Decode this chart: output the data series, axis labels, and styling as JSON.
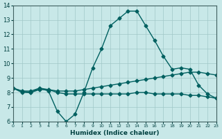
{
  "xlabel": "Humidex (Indice chaleur)",
  "ylabel": "",
  "xlim": [
    0,
    23
  ],
  "ylim": [
    6,
    14
  ],
  "xticks": [
    0,
    1,
    2,
    3,
    4,
    5,
    6,
    7,
    8,
    9,
    10,
    11,
    12,
    13,
    14,
    15,
    16,
    17,
    18,
    19,
    20,
    21,
    22,
    23
  ],
  "yticks": [
    6,
    7,
    8,
    9,
    10,
    11,
    12,
    13,
    14
  ],
  "background_color": "#c8e8e8",
  "grid_color": "#a0c8c8",
  "line_color": "#006060",
  "line1_x": [
    0,
    1,
    2,
    3,
    4,
    5,
    6,
    7,
    8,
    9,
    10,
    11,
    12,
    13,
    14,
    15,
    16,
    17,
    18,
    19,
    20,
    21,
    22,
    23
  ],
  "line1_y": [
    8.3,
    8.0,
    8.0,
    8.3,
    8.1,
    6.7,
    6.0,
    6.5,
    8.0,
    9.7,
    11.0,
    12.6,
    13.1,
    13.6,
    13.6,
    12.6,
    11.6,
    10.5,
    9.6,
    9.7,
    9.6,
    8.5,
    7.9,
    7.6
  ],
  "line2_x": [
    0,
    1,
    2,
    3,
    4,
    5,
    6,
    7,
    8,
    9,
    10,
    11,
    12,
    13,
    14,
    15,
    16,
    17,
    18,
    19,
    20,
    21,
    22,
    23
  ],
  "line2_y": [
    8.3,
    8.1,
    8.1,
    8.3,
    8.2,
    8.1,
    8.1,
    8.1,
    8.2,
    8.3,
    8.4,
    8.5,
    8.6,
    8.7,
    8.8,
    8.9,
    9.0,
    9.1,
    9.2,
    9.3,
    9.4,
    9.4,
    9.3,
    9.2
  ],
  "line3_x": [
    0,
    1,
    2,
    3,
    4,
    5,
    6,
    7,
    8,
    9,
    10,
    11,
    12,
    13,
    14,
    15,
    16,
    17,
    18,
    19,
    20,
    21,
    22,
    23
  ],
  "line3_y": [
    8.3,
    8.1,
    8.0,
    8.2,
    8.2,
    8.0,
    7.9,
    7.9,
    7.9,
    7.9,
    7.9,
    7.9,
    7.9,
    7.9,
    8.0,
    8.0,
    7.9,
    7.9,
    7.9,
    7.9,
    7.8,
    7.8,
    7.7,
    7.6
  ]
}
